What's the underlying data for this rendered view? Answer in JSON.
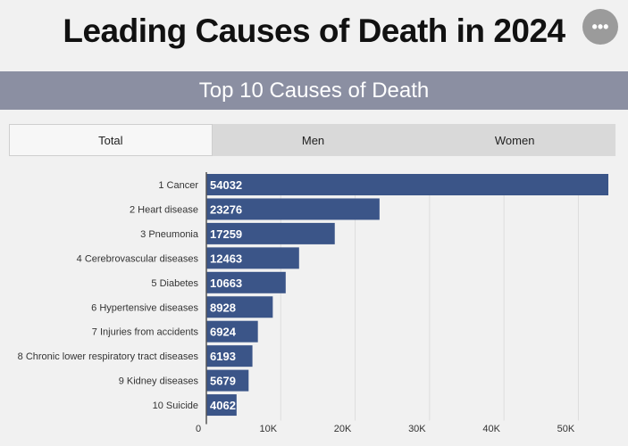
{
  "header": {
    "title": "Leading Causes of Death in 2024",
    "menu_icon": "more-horizontal-icon",
    "menu_glyph": "•••"
  },
  "subtitle": "Top 10 Causes of Death",
  "tabs": [
    {
      "label": "Total",
      "active": true
    },
    {
      "label": "Men",
      "active": false
    },
    {
      "label": "Women",
      "active": false
    }
  ],
  "colors": {
    "bar": "#3b5588",
    "subtitle_band": "#8b8fa2",
    "grid": "#dddddd"
  },
  "chart_data": {
    "type": "bar",
    "orientation": "horizontal",
    "title": "Top 10 Causes of Death",
    "categories": [
      "1 Cancer",
      "2 Heart disease",
      "3 Pneumonia",
      "4 Cerebrovascular diseases",
      "5 Diabetes",
      "6 Hypertensive diseases",
      "7 Injuries from accidents",
      "8 Chronic lower respiratory tract diseases",
      "9 Kidney diseases",
      "10 Suicide"
    ],
    "values": [
      54032,
      23276,
      17259,
      12463,
      10663,
      8928,
      6924,
      6193,
      5679,
      4062
    ],
    "xlim": [
      0,
      54032
    ],
    "xticks": [
      0,
      10000,
      20000,
      30000,
      40000,
      50000
    ],
    "xtick_labels": [
      "0",
      "10K",
      "20K",
      "30K",
      "40K",
      "50K"
    ],
    "grid": true,
    "data_labels": true
  }
}
